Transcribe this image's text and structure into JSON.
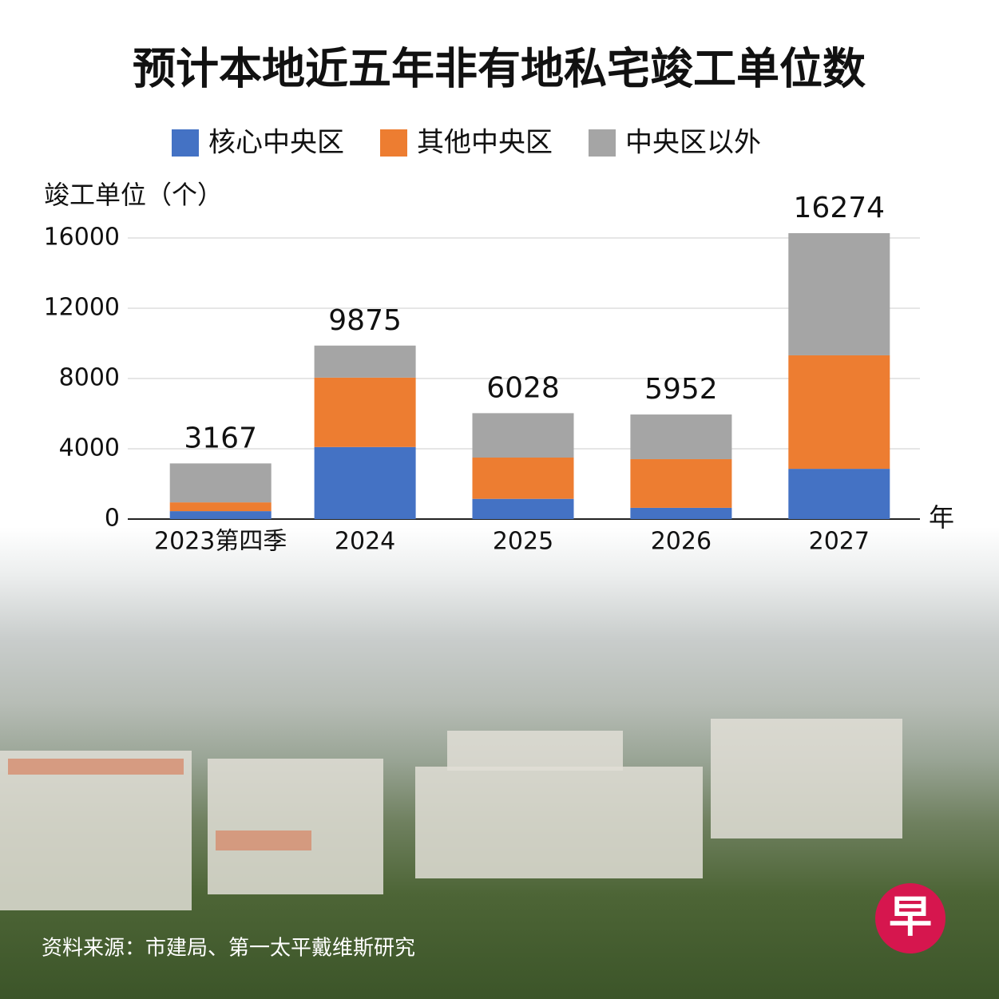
{
  "chart_data": {
    "type": "bar",
    "stacked": true,
    "title": "预计本地近五年非有地私宅竣工单位数",
    "y_label": "竣工单位（个）",
    "x_label": "年",
    "categories": [
      "2023第四季",
      "2024",
      "2025",
      "2026",
      "2027"
    ],
    "series": [
      {
        "name": "核心中央区",
        "color": "#4472c4",
        "values": [
          450,
          4100,
          1150,
          640,
          2860
        ]
      },
      {
        "name": "其他中央区",
        "color": "#ed7d31",
        "values": [
          500,
          3950,
          2350,
          2770,
          6460
        ]
      },
      {
        "name": "中央区以外",
        "color": "#a5a5a5",
        "values": [
          2217,
          1825,
          2528,
          2542,
          6954
        ]
      }
    ],
    "totals": [
      3167,
      9875,
      6028,
      5952,
      16274
    ],
    "ylim": [
      0,
      16000
    ],
    "yticks": [
      0,
      4000,
      8000,
      12000,
      16000
    ],
    "grid": true,
    "source": "资料来源：市建局、第一太平戴维斯研究",
    "logo": "早"
  }
}
